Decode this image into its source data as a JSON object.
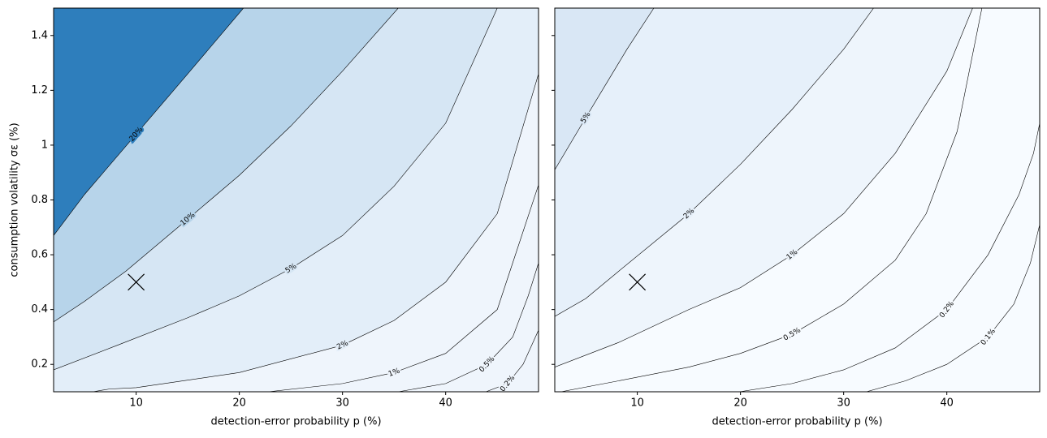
{
  "chart_data": [
    {
      "type": "contour",
      "background": "#eff5fc",
      "xlabel": "detection-error probability p (%)",
      "ylabel": "consumption volatility σε (%)",
      "xlim": [
        2,
        49
      ],
      "ylim": [
        0.1,
        1.5
      ],
      "xticks": [
        10,
        20,
        30,
        40
      ],
      "yticks": [
        0.2,
        0.4,
        0.6,
        0.8,
        1.0,
        1.2,
        1.4
      ],
      "ytick_labels": true,
      "marker": {
        "x": 10,
        "y": 0.5
      },
      "contours": [
        {
          "label": "2%",
          "fill": "#e3eef9",
          "x": [
            5.8,
            7.4,
            10,
            20,
            30,
            35,
            40,
            45,
            49
          ],
          "y": [
            0.1,
            0.11,
            0.115,
            0.17,
            0.27,
            0.36,
            0.5,
            0.75,
            1.26
          ]
        },
        {
          "label": "5%",
          "fill": "#d6e6f4",
          "x": [
            2,
            8.2,
            15,
            20,
            25,
            30,
            35,
            40,
            45
          ],
          "y": [
            0.18,
            0.27,
            0.37,
            0.45,
            0.55,
            0.67,
            0.85,
            1.08,
            1.5
          ]
        },
        {
          "label": "10%",
          "fill": "#b7d4ea",
          "x": [
            2,
            5,
            9,
            15,
            20,
            25,
            30,
            35.4
          ],
          "y": [
            0.355,
            0.43,
            0.54,
            0.73,
            0.89,
            1.07,
            1.27,
            1.5
          ]
        },
        {
          "label": "20%",
          "fill": "#2e7ebc",
          "x": [
            2,
            5,
            10,
            15,
            20.4
          ],
          "y": [
            0.67,
            0.82,
            1.04,
            1.26,
            1.5
          ]
        },
        {
          "label": "1%",
          "fill": null,
          "x": [
            22.8,
            30,
            35,
            40,
            45,
            49
          ],
          "y": [
            0.1,
            0.13,
            0.17,
            0.24,
            0.4,
            0.855
          ]
        },
        {
          "label": "0.5%",
          "fill": null,
          "x": [
            35.4,
            40,
            44,
            46.5,
            48,
            49
          ],
          "y": [
            0.1,
            0.13,
            0.2,
            0.3,
            0.45,
            0.57
          ]
        },
        {
          "label": "0.2%",
          "fill": null,
          "x": [
            43.9,
            46,
            47.5,
            49
          ],
          "y": [
            0.1,
            0.13,
            0.2,
            0.325
          ]
        }
      ]
    },
    {
      "type": "contour",
      "background": "#f7fbff",
      "xlabel": "detection-error probability p (%)",
      "xlim": [
        2,
        49
      ],
      "ylim": [
        0.1,
        1.5
      ],
      "xticks": [
        10,
        20,
        30,
        40
      ],
      "yticks": [
        0.2,
        0.4,
        0.6,
        0.8,
        1.0,
        1.2,
        1.4
      ],
      "ytick_labels": false,
      "marker": {
        "x": 10,
        "y": 0.5
      },
      "contours": [
        {
          "label": "1%",
          "fill": "#eef5fc",
          "x": [
            2,
            8.2,
            15,
            20,
            25,
            30,
            35,
            40,
            42.5
          ],
          "y": [
            0.19,
            0.28,
            0.4,
            0.48,
            0.6,
            0.75,
            0.97,
            1.27,
            1.5
          ]
        },
        {
          "label": "2%",
          "fill": "#e6f0fa",
          "x": [
            2,
            5,
            8.2,
            15,
            20,
            25,
            30,
            32.9
          ],
          "y": [
            0.375,
            0.44,
            0.54,
            0.75,
            0.93,
            1.13,
            1.35,
            1.5
          ]
        },
        {
          "label": "5%",
          "fill": "#d9e7f5",
          "x": [
            2,
            5,
            9,
            11.6
          ],
          "y": [
            0.91,
            1.1,
            1.35,
            1.5
          ]
        },
        {
          "label": "0.5%",
          "fill": null,
          "x": [
            2.6,
            8.2,
            15,
            20,
            25,
            30,
            35,
            38,
            41,
            43.4
          ],
          "y": [
            0.1,
            0.14,
            0.19,
            0.24,
            0.31,
            0.42,
            0.58,
            0.75,
            1.05,
            1.5
          ]
        },
        {
          "label": "0.2%",
          "fill": null,
          "x": [
            19.9,
            25,
            30,
            35,
            40,
            44,
            47,
            48.4,
            49
          ],
          "y": [
            0.1,
            0.13,
            0.18,
            0.26,
            0.4,
            0.6,
            0.82,
            0.97,
            1.08
          ]
        },
        {
          "label": "0.1%",
          "fill": null,
          "x": [
            32.2,
            36,
            40,
            44,
            46.5,
            48.1,
            49
          ],
          "y": [
            0.1,
            0.14,
            0.2,
            0.3,
            0.42,
            0.57,
            0.71
          ]
        }
      ]
    }
  ]
}
